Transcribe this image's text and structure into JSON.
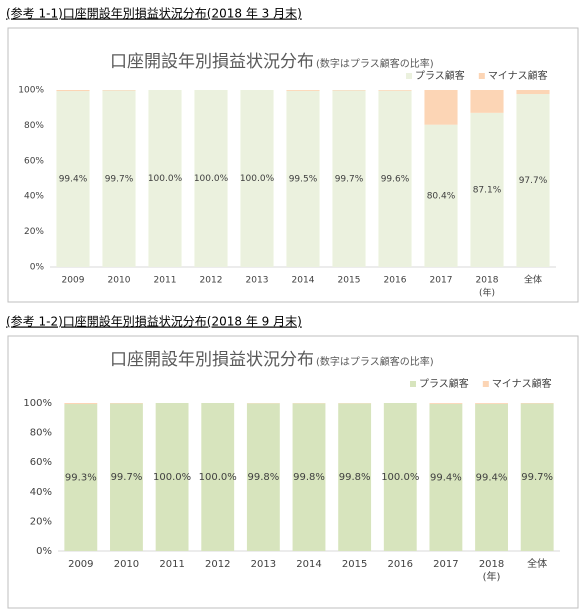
{
  "captions": [
    "(参考 1-1)口座開設年別損益状況分布(2018 年 3 月末)",
    "(参考 1-2)口座開設年別損益状況分布(2018 年 9 月末)"
  ],
  "chart_data": [
    {
      "type": "stacked_bar",
      "title": "口座開設年別損益状況分布",
      "subtitle": "(数字はプラス顧客の比率)",
      "categories": [
        "2009",
        "2010",
        "2011",
        "2012",
        "2013",
        "2014",
        "2015",
        "2016",
        "2017",
        "2018",
        "全体"
      ],
      "annotation": "(年)",
      "series": [
        {
          "name": "プラス顧客",
          "color": "#ebf1de",
          "values": [
            99.4,
            99.7,
            100,
            100,
            100,
            99.5,
            99.7,
            99.6,
            80.4,
            87.1,
            97.7
          ],
          "value_labels": [
            "99.4%",
            "99.7%",
            "100.0%",
            "100.0%",
            "100.0%",
            "99.5%",
            "99.7%",
            "99.6%",
            "80.4%",
            "87.1%",
            "97.7%"
          ]
        },
        {
          "name": "マイナス顧客",
          "color": "#fcd5b5",
          "values": [
            0.6,
            0.3,
            0,
            0,
            0,
            0.5,
            0.3,
            0.4,
            19.6,
            12.9,
            2.3
          ]
        }
      ],
      "ylim": [
        0,
        100
      ],
      "yticks": [
        {
          "value": 0,
          "label": "0%"
        },
        {
          "value": 20,
          "label": "20%"
        },
        {
          "value": 40,
          "label": "40%"
        },
        {
          "value": 60,
          "label": "60%"
        },
        {
          "value": 80,
          "label": "80%"
        },
        {
          "value": 100,
          "label": "100%"
        }
      ],
      "grid": false,
      "legend": "top-right"
    },
    {
      "type": "stacked_bar",
      "title": "口座開設年別損益状況分布",
      "subtitle": "(数字はプラス顧客の比率)",
      "categories": [
        "2009",
        "2010",
        "2011",
        "2012",
        "2013",
        "2014",
        "2015",
        "2016",
        "2017",
        "2018",
        "全体"
      ],
      "annotation": "(年)",
      "series": [
        {
          "name": "プラス顧客",
          "color": "#d7e4bd",
          "values": [
            99.3,
            99.7,
            100,
            100,
            99.8,
            99.8,
            99.8,
            100,
            99.4,
            99.4,
            99.7
          ],
          "value_labels": [
            "99.3%",
            "99.7%",
            "100.0%",
            "100.0%",
            "99.8%",
            "99.8%",
            "99.8%",
            "100.0%",
            "99.4%",
            "99.4%",
            "99.7%"
          ]
        },
        {
          "name": "マイナス顧客",
          "color": "#fcd5b5",
          "values": [
            0.7,
            0.3,
            0,
            0,
            0.2,
            0.2,
            0.2,
            0,
            0.6,
            0.6,
            0.3
          ]
        }
      ],
      "ylim": [
        0,
        100
      ],
      "yticks": [
        {
          "value": 0,
          "label": "0%"
        },
        {
          "value": 20,
          "label": "20%"
        },
        {
          "value": 40,
          "label": "40%"
        },
        {
          "value": 60,
          "label": "60%"
        },
        {
          "value": 80,
          "label": "80%"
        },
        {
          "value": 100,
          "label": "100%"
        }
      ],
      "grid": false,
      "legend": "top-right"
    }
  ]
}
